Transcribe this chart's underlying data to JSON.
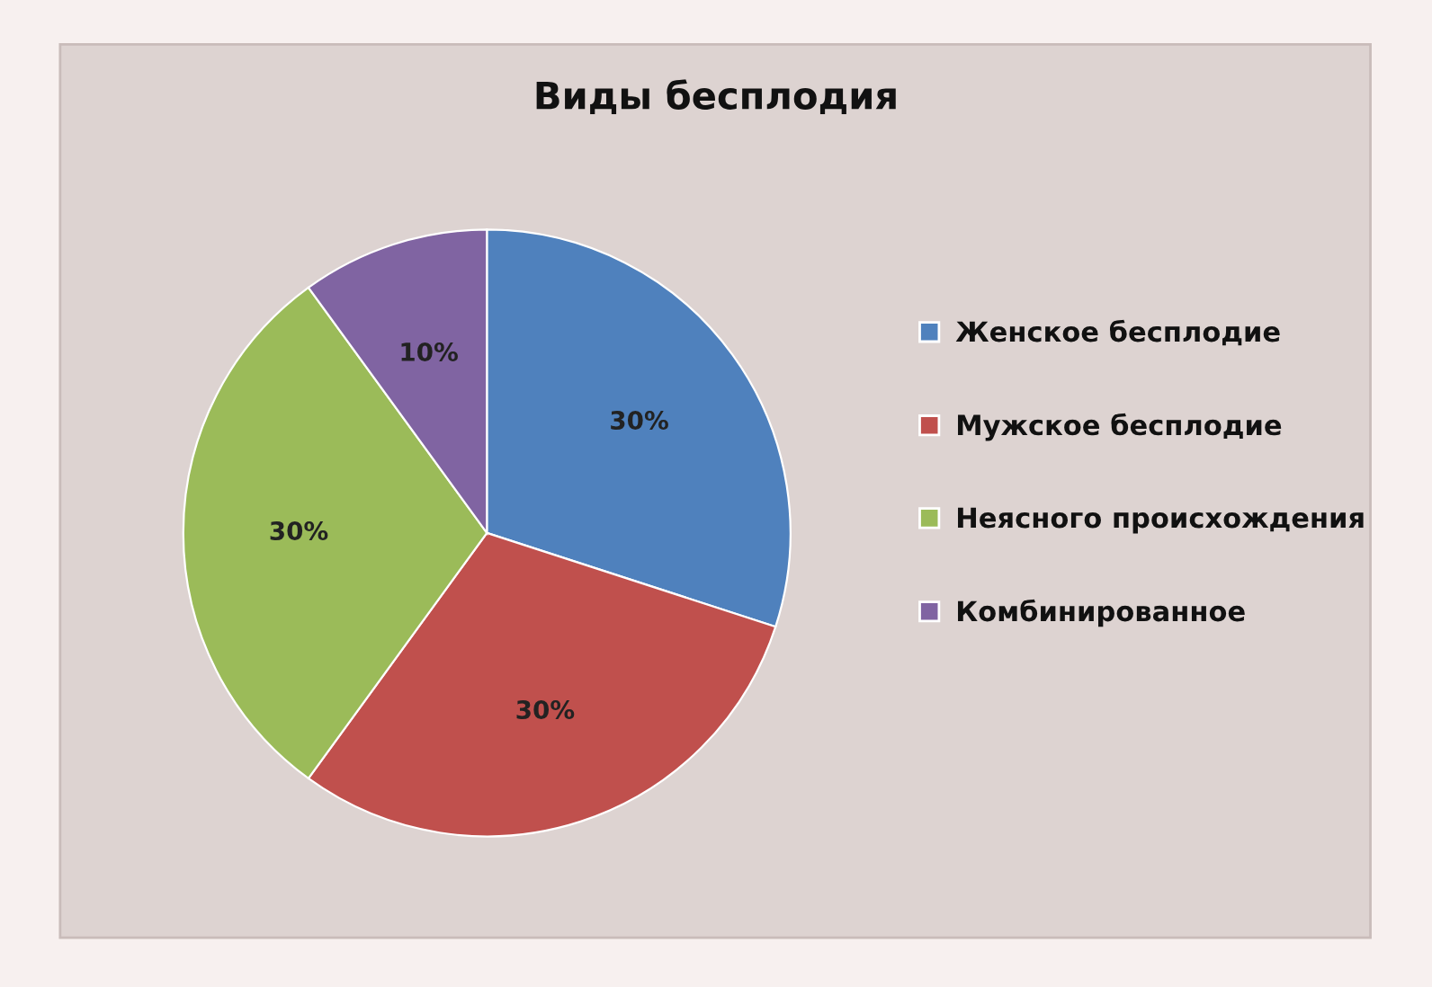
{
  "chart_data": {
    "type": "pie",
    "title": "Виды бесплодия",
    "categories": [
      "Женское бесплодие",
      "Мужское бесплодие",
      "Неясного происхождения",
      "Комбинированное"
    ],
    "values": [
      30,
      30,
      30,
      10
    ],
    "colors": [
      "#4f81bd",
      "#c0504d",
      "#9bbb59",
      "#8064a2"
    ],
    "value_labels": [
      "30%",
      "30%",
      "30%",
      "10%"
    ],
    "legend": "right"
  }
}
